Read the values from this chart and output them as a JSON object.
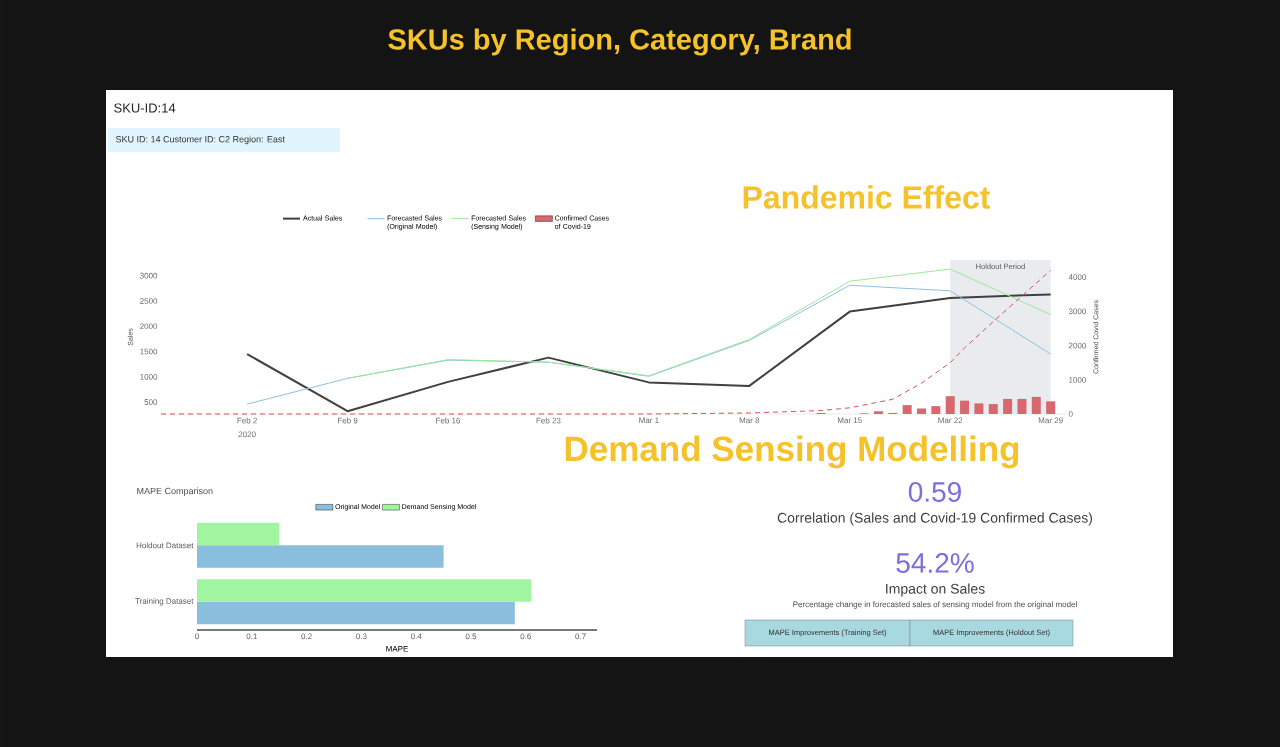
{
  "chart_data": [
    {
      "type": "line",
      "title": "SKU-ID:14",
      "subtitle": "SKU ID: 14   Customer ID: C2   Region: East",
      "ylabel": "Sales",
      "y2label": "Confirmed Covid Cases",
      "x": [
        "2020-02-02",
        "2020-02-09",
        "2020-02-16",
        "2020-02-23",
        "2020-03-01",
        "2020-03-08",
        "2020-03-15",
        "2020-03-22",
        "2020-03-29"
      ],
      "series": [
        {
          "name": "Actual Sales",
          "color": "#404040",
          "values": [
            1450,
            320,
            900,
            1380,
            890,
            820,
            2290,
            2560,
            2630
          ]
        },
        {
          "name": "Forecasted Sales (Original Model)",
          "color": "#8fc1e0",
          "values": [
            460,
            970,
            1330,
            1290,
            1010,
            1720,
            2810,
            2700,
            1450
          ]
        },
        {
          "name": "Forecasted Sales (Sensing Model)",
          "color": "#9be89b",
          "values": [
            null,
            970,
            1340,
            1290,
            1020,
            1740,
            2890,
            3130,
            2230
          ]
        },
        {
          "name": "Confirmed Cases of Covid-19",
          "type": "bar",
          "axis": "y2",
          "color": "#d9676f",
          "x": [
            "2020-03-13",
            "2020-03-16",
            "2020-03-17",
            "2020-03-18",
            "2020-03-19",
            "2020-03-20",
            "2020-03-21",
            "2020-03-22",
            "2020-03-23",
            "2020-03-24",
            "2020-03-25",
            "2020-03-26",
            "2020-03-27",
            "2020-03-28",
            "2020-03-29"
          ],
          "values": [
            30,
            20,
            80,
            30,
            260,
            160,
            230,
            520,
            390,
            310,
            290,
            440,
            440,
            500,
            370
          ]
        },
        {
          "type": "line",
          "axis": "y2",
          "line_style": "dashed",
          "color": "#d9534f",
          "x": [
            "2020-01-27",
            "2020-02-09",
            "2020-02-23",
            "2020-03-01",
            "2020-03-08",
            "2020-03-13",
            "2020-03-15",
            "2020-03-18",
            "2020-03-20",
            "2020-03-22",
            "2020-03-23",
            "2020-03-25",
            "2020-03-27",
            "2020-03-29"
          ],
          "values": [
            0,
            0,
            0,
            0,
            30,
            100,
            180,
            430,
            900,
            1500,
            1930,
            2700,
            3450,
            4200
          ]
        }
      ],
      "xlim": [
        "2020-01-27",
        "2020-03-30"
      ],
      "xticks": [
        {
          "value": "2020-02-02",
          "label": "Feb 2"
        },
        {
          "value": "2020-02-09",
          "label": "Feb 9"
        },
        {
          "value": "2020-02-16",
          "label": "Feb 16"
        },
        {
          "value": "2020-02-23",
          "label": "Feb 23"
        },
        {
          "value": "2020-03-01",
          "label": "Mar 1"
        },
        {
          "value": "2020-03-08",
          "label": "Mar 8"
        },
        {
          "value": "2020-03-15",
          "label": "Mar 15"
        },
        {
          "value": "2020-03-22",
          "label": "Mar 22"
        },
        {
          "value": "2020-03-29",
          "label": "Mar 29"
        }
      ],
      "ylim": [
        265,
        3310
      ],
      "yticks": [
        500,
        1000,
        1500,
        2000,
        2500,
        3000
      ],
      "y2lim": [
        0,
        4500
      ],
      "y2ticks": [
        0,
        1000,
        2000,
        3000,
        4000
      ],
      "bands": [
        {
          "axis": "x",
          "from": "2020-03-22",
          "to": "2020-03-29",
          "label": "Holdout Period",
          "color": "#e9ebef"
        }
      ],
      "legend": "top",
      "annotations": [
        "2020",
        "SKUs by Region, Category, Brand",
        "Pandemic Effect",
        "Demand Sensing Modelling"
      ]
    },
    {
      "type": "bar",
      "orientation": "horizontal",
      "title": "MAPE Comparison",
      "xlabel": "MAPE",
      "categories": [
        "Holdout Dataset",
        "Training Dataset"
      ],
      "series": [
        {
          "name": "Original Model",
          "color": "#89bedc",
          "values": [
            0.45,
            0.58
          ]
        },
        {
          "name": "Demand Sensing Model",
          "color": "#a2f5a0",
          "values": [
            0.15,
            0.61
          ]
        }
      ],
      "xlim": [
        0,
        0.73
      ],
      "xticks": [
        0,
        0.1,
        0.2,
        0.3,
        0.4,
        0.5,
        0.6,
        0.7
      ],
      "legend": "top"
    },
    {
      "type": "other",
      "annotations": [
        "0.59",
        "Correlation (Sales and Covid-19 Confirmed Cases)",
        "54.2%",
        "Impact on Sales",
        "Percentage change in forecasted sales of sensing model from the original model",
        "MAPE Improvements (Training Set)",
        "MAPE Improvements (Holdout Set)"
      ]
    }
  ]
}
